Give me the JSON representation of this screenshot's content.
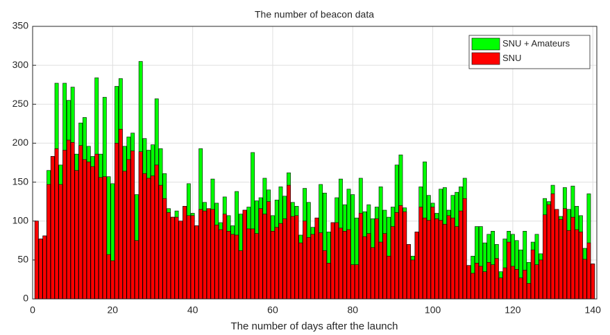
{
  "chart_data": {
    "type": "bar",
    "title": "The number of beacon data",
    "x_label": "The number of days after the launch",
    "x": [
      1,
      2,
      3,
      4,
      5,
      6,
      7,
      8,
      9,
      10,
      11,
      12,
      13,
      14,
      15,
      16,
      17,
      18,
      19,
      20,
      21,
      22,
      23,
      24,
      25,
      26,
      27,
      28,
      29,
      30,
      31,
      32,
      33,
      34,
      35,
      36,
      37,
      38,
      39,
      40,
      41,
      42,
      43,
      44,
      45,
      46,
      47,
      48,
      49,
      50,
      51,
      52,
      53,
      54,
      55,
      56,
      57,
      58,
      59,
      60,
      61,
      62,
      63,
      64,
      65,
      66,
      67,
      68,
      69,
      70,
      71,
      72,
      73,
      74,
      75,
      76,
      77,
      78,
      79,
      80,
      81,
      82,
      83,
      84,
      85,
      86,
      87,
      88,
      89,
      90,
      91,
      92,
      93,
      94,
      95,
      96,
      97,
      98,
      99,
      100,
      101,
      102,
      103,
      104,
      105,
      106,
      107,
      108,
      109,
      110,
      111,
      112,
      113,
      114,
      115,
      116,
      117,
      118,
      119,
      120,
      121,
      122,
      123,
      124,
      125,
      126,
      127,
      128,
      129,
      130,
      131,
      132,
      133,
      134,
      135,
      136,
      137,
      138,
      139,
      140
    ],
    "series": [
      {
        "name": "SNU + Amateurs",
        "color": "#00ff00",
        "values": [
          100,
          77,
          81,
          165,
          183,
          277,
          172,
          277,
          255,
          272,
          186,
          226,
          233,
          196,
          183,
          284,
          186,
          259,
          157,
          148,
          273,
          283,
          196,
          208,
          213,
          134,
          305,
          206,
          191,
          198,
          257,
          193,
          161,
          116,
          105,
          113,
          100,
          119,
          148,
          110,
          94,
          193,
          124,
          116,
          154,
          123,
          98,
          131,
          107,
          94,
          138,
          109,
          114,
          118,
          188,
          126,
          130,
          155,
          140,
          107,
          127,
          144,
          132,
          162,
          124,
          119,
          82,
          142,
          124,
          92,
          104,
          147,
          136,
          86,
          98,
          130,
          154,
          121,
          141,
          134,
          104,
          155,
          112,
          121,
          103,
          118,
          144,
          114,
          105,
          118,
          172,
          185,
          117,
          70,
          55,
          86,
          144,
          176,
          133,
          123,
          110,
          141,
          143,
          114,
          133,
          137,
          144,
          155,
          43,
          55,
          93,
          93,
          72,
          83,
          87,
          70,
          35,
          77,
          87,
          83,
          75,
          63,
          87,
          47,
          73,
          83,
          58,
          129,
          125,
          146,
          115,
          106,
          143,
          115,
          145,
          119,
          107,
          65,
          135,
          45
        ]
      },
      {
        "name": "SNU",
        "color": "#ff0000",
        "values": [
          100,
          77,
          81,
          147,
          183,
          193,
          147,
          191,
          204,
          201,
          165,
          197,
          179,
          176,
          170,
          186,
          156,
          157,
          57,
          49,
          200,
          218,
          164,
          179,
          190,
          75,
          189,
          161,
          155,
          158,
          172,
          146,
          129,
          111,
          105,
          105,
          100,
          119,
          107,
          107,
          94,
          115,
          113,
          116,
          115,
          95,
          89,
          109,
          87,
          83,
          82,
          62,
          114,
          90,
          90,
          84,
          116,
          109,
          125,
          87,
          92,
          97,
          103,
          146,
          106,
          107,
          72,
          100,
          79,
          83,
          104,
          85,
          62,
          46,
          98,
          98,
          91,
          87,
          89,
          44,
          44,
          110,
          80,
          84,
          66,
          103,
          73,
          84,
          55,
          93,
          111,
          120,
          112,
          70,
          50,
          86,
          118,
          104,
          101,
          118,
          103,
          101,
          96,
          107,
          104,
          93,
          113,
          129,
          43,
          33,
          46,
          42,
          35,
          47,
          44,
          52,
          27,
          40,
          73,
          42,
          38,
          27,
          37,
          20,
          63,
          44,
          50,
          108,
          121,
          135,
          115,
          102,
          116,
          88,
          105,
          89,
          86,
          51,
          72,
          45
        ]
      }
    ],
    "xlim": [
      0,
      141
    ],
    "xticks": [
      0,
      20,
      40,
      60,
      80,
      100,
      120,
      140
    ],
    "ylim": [
      0,
      350
    ],
    "yticks": [
      0,
      50,
      100,
      150,
      200,
      250,
      300,
      350
    ],
    "grid": true,
    "legend": "upper right"
  }
}
